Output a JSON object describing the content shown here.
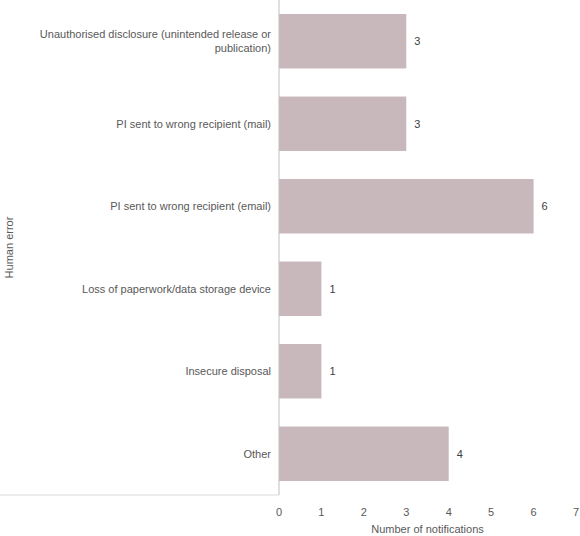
{
  "chart_data": {
    "type": "bar",
    "orientation": "horizontal",
    "categories": [
      "Unauthorised disclosure (unintended release or publication)",
      "PI sent to wrong recipient (mail)",
      "PI sent to wrong recipient (email)",
      "Loss of paperwork/data storage device",
      "Insecure disposal",
      "Other"
    ],
    "values": [
      3,
      3,
      6,
      1,
      1,
      4
    ],
    "color": "#c9b8bb",
    "x_label": "Number of notifications",
    "y_label": "Human error",
    "xlim": [
      0,
      7
    ],
    "xticks": [
      0,
      1,
      2,
      3,
      4,
      5,
      6,
      7
    ],
    "grid": false,
    "data_labels": true
  }
}
